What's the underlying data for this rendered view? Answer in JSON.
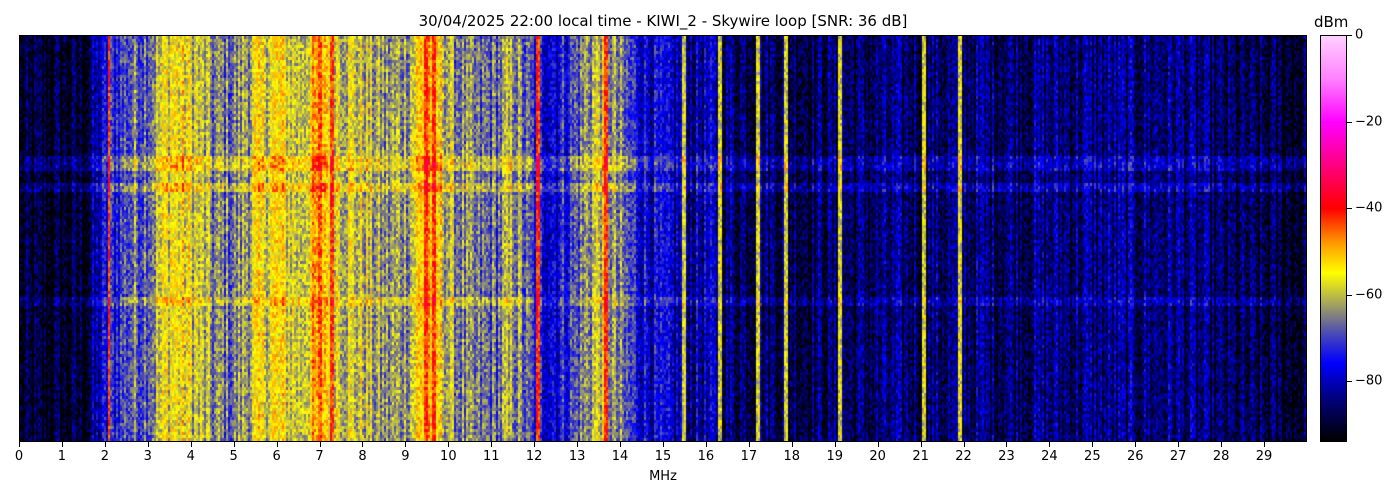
{
  "chart_data": {
    "type": "heatmap",
    "title": "30/04/2025 22:00 local time - KIWI_2 - Skywire loop [SNR: 36 dB]",
    "xlabel": "MHz",
    "ylabel": "",
    "xlim": [
      0,
      30
    ],
    "xticks": [
      "0",
      "1",
      "2",
      "3",
      "4",
      "5",
      "6",
      "7",
      "8",
      "9",
      "10",
      "11",
      "12",
      "13",
      "14",
      "15",
      "16",
      "17",
      "18",
      "19",
      "20",
      "21",
      "22",
      "23",
      "24",
      "25",
      "26",
      "27",
      "28",
      "29"
    ],
    "colorbar": {
      "label": "dBm",
      "range": [
        -94,
        0
      ],
      "ticks": [
        "0",
        "−20",
        "−40",
        "−60",
        "−80"
      ],
      "tick_values": [
        0,
        -20,
        -40,
        -60,
        -80
      ],
      "colorscale": [
        {
          "dbm": -94,
          "color": "#000000"
        },
        {
          "dbm": -84,
          "color": "#000080"
        },
        {
          "dbm": -76,
          "color": "#0000ff"
        },
        {
          "dbm": -70,
          "color": "#4040c0"
        },
        {
          "dbm": -65,
          "color": "#808080"
        },
        {
          "dbm": -60,
          "color": "#c0c040"
        },
        {
          "dbm": -55,
          "color": "#ffff00"
        },
        {
          "dbm": -48,
          "color": "#ff9900"
        },
        {
          "dbm": -40,
          "color": "#ff0000"
        },
        {
          "dbm": -30,
          "color": "#ff0080"
        },
        {
          "dbm": -20,
          "color": "#ff00ff"
        },
        {
          "dbm": -10,
          "color": "#ff80ff"
        },
        {
          "dbm": 0,
          "color": "#ffd0ff"
        }
      ]
    },
    "mean_power_profile_mhz_dbm": [
      [
        0,
        -92
      ],
      [
        1.5,
        -90
      ],
      [
        2,
        -76
      ],
      [
        2.5,
        -68
      ],
      [
        3,
        -65
      ],
      [
        3.5,
        -55
      ],
      [
        4,
        -58
      ],
      [
        4.5,
        -66
      ],
      [
        5,
        -66
      ],
      [
        5.5,
        -58
      ],
      [
        6,
        -55
      ],
      [
        6.5,
        -60
      ],
      [
        7,
        -48
      ],
      [
        7.5,
        -58
      ],
      [
        8,
        -60
      ],
      [
        8.5,
        -65
      ],
      [
        9,
        -62
      ],
      [
        9.5,
        -48
      ],
      [
        10,
        -62
      ],
      [
        10.5,
        -68
      ],
      [
        11,
        -68
      ],
      [
        11.5,
        -62
      ],
      [
        12,
        -74
      ],
      [
        12.5,
        -76
      ],
      [
        13,
        -68
      ],
      [
        13.5,
        -58
      ],
      [
        14,
        -68
      ],
      [
        14.5,
        -76
      ],
      [
        15,
        -80
      ],
      [
        15.5,
        -82
      ],
      [
        16,
        -81
      ],
      [
        16.5,
        -85
      ],
      [
        18,
        -86
      ],
      [
        19,
        -87
      ],
      [
        22,
        -85
      ],
      [
        27,
        -84
      ],
      [
        28,
        -88
      ],
      [
        30,
        -90
      ]
    ],
    "strong_carriers_mhz": [
      2.05,
      7.25,
      9.45,
      9.65,
      12.05,
      13.65,
      15.45,
      16.3,
      17.2,
      17.85,
      19.1,
      21.05,
      21.9
    ]
  }
}
